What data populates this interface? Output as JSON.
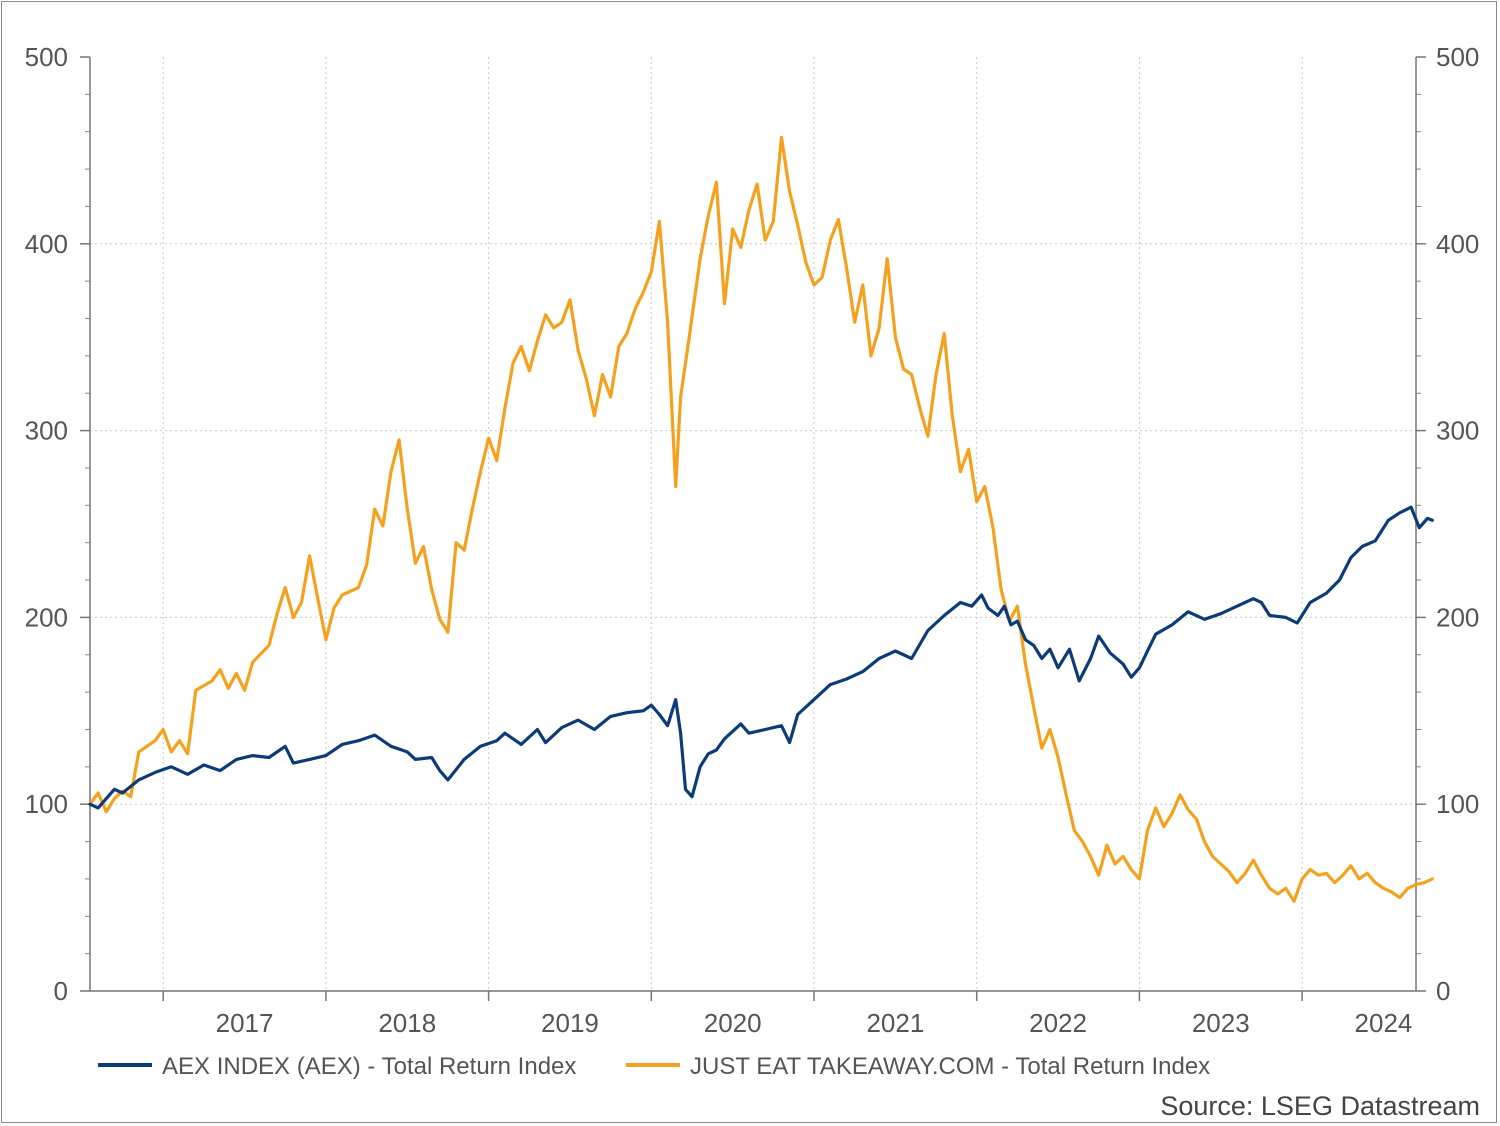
{
  "chart_data": {
    "type": "line",
    "title": "",
    "xlabel": "",
    "ylabel": "",
    "ylim": [
      0,
      500
    ],
    "y_ticks": [
      0,
      100,
      200,
      300,
      400,
      500
    ],
    "y_tick_labels": [
      "0",
      "100",
      "200",
      "300",
      "400",
      "500"
    ],
    "x_range": [
      2016.3,
      2024.45
    ],
    "x_tick_labels": [
      "2017",
      "2018",
      "2019",
      "2020",
      "2021",
      "2022",
      "2023",
      "2024"
    ],
    "grid": true,
    "legend_position": "bottom",
    "source": "Source: LSEG Datastream",
    "series": [
      {
        "name": "AEX INDEX (AEX) - Total Return Index",
        "color": "#0c3c78",
        "points": [
          [
            2016.3,
            100
          ],
          [
            2016.35,
            98
          ],
          [
            2016.4,
            103
          ],
          [
            2016.45,
            108
          ],
          [
            2016.5,
            106
          ],
          [
            2016.6,
            113
          ],
          [
            2016.7,
            117
          ],
          [
            2016.8,
            120
          ],
          [
            2016.9,
            116
          ],
          [
            2017.0,
            121
          ],
          [
            2017.1,
            118
          ],
          [
            2017.2,
            124
          ],
          [
            2017.3,
            126
          ],
          [
            2017.4,
            125
          ],
          [
            2017.5,
            131
          ],
          [
            2017.55,
            122
          ],
          [
            2017.65,
            124
          ],
          [
            2017.75,
            126
          ],
          [
            2017.85,
            132
          ],
          [
            2017.95,
            134
          ],
          [
            2018.05,
            137
          ],
          [
            2018.15,
            131
          ],
          [
            2018.25,
            128
          ],
          [
            2018.3,
            124
          ],
          [
            2018.4,
            125
          ],
          [
            2018.45,
            118
          ],
          [
            2018.5,
            113
          ],
          [
            2018.6,
            124
          ],
          [
            2018.7,
            131
          ],
          [
            2018.8,
            134
          ],
          [
            2018.85,
            138
          ],
          [
            2018.95,
            132
          ],
          [
            2019.05,
            140
          ],
          [
            2019.1,
            133
          ],
          [
            2019.2,
            141
          ],
          [
            2019.3,
            145
          ],
          [
            2019.4,
            140
          ],
          [
            2019.5,
            147
          ],
          [
            2019.6,
            149
          ],
          [
            2019.7,
            150
          ],
          [
            2019.75,
            153
          ],
          [
            2019.8,
            148
          ],
          [
            2019.85,
            142
          ],
          [
            2019.9,
            156
          ],
          [
            2019.93,
            138
          ],
          [
            2019.96,
            108
          ],
          [
            2020.0,
            104
          ],
          [
            2020.05,
            120
          ],
          [
            2020.1,
            127
          ],
          [
            2020.15,
            129
          ],
          [
            2020.2,
            135
          ],
          [
            2020.3,
            143
          ],
          [
            2020.35,
            138
          ],
          [
            2020.45,
            140
          ],
          [
            2020.55,
            142
          ],
          [
            2020.6,
            133
          ],
          [
            2020.65,
            148
          ],
          [
            2020.75,
            156
          ],
          [
            2020.85,
            164
          ],
          [
            2020.95,
            167
          ],
          [
            2021.05,
            171
          ],
          [
            2021.15,
            178
          ],
          [
            2021.25,
            182
          ],
          [
            2021.35,
            178
          ],
          [
            2021.45,
            193
          ],
          [
            2021.55,
            201
          ],
          [
            2021.65,
            208
          ],
          [
            2021.72,
            206
          ],
          [
            2021.78,
            212
          ],
          [
            2021.82,
            205
          ],
          [
            2021.88,
            201
          ],
          [
            2021.92,
            206
          ],
          [
            2021.96,
            196
          ],
          [
            2022.0,
            198
          ],
          [
            2022.05,
            188
          ],
          [
            2022.1,
            185
          ],
          [
            2022.15,
            178
          ],
          [
            2022.2,
            183
          ],
          [
            2022.25,
            173
          ],
          [
            2022.32,
            183
          ],
          [
            2022.38,
            166
          ],
          [
            2022.45,
            178
          ],
          [
            2022.5,
            190
          ],
          [
            2022.57,
            181
          ],
          [
            2022.65,
            175
          ],
          [
            2022.7,
            168
          ],
          [
            2022.75,
            173
          ],
          [
            2022.8,
            182
          ],
          [
            2022.85,
            191
          ],
          [
            2022.95,
            196
          ],
          [
            2023.05,
            203
          ],
          [
            2023.15,
            199
          ],
          [
            2023.25,
            202
          ],
          [
            2023.35,
            206
          ],
          [
            2023.45,
            210
          ],
          [
            2023.5,
            208
          ],
          [
            2023.55,
            201
          ],
          [
            2023.65,
            200
          ],
          [
            2023.72,
            197
          ],
          [
            2023.8,
            208
          ],
          [
            2023.9,
            213
          ],
          [
            2023.98,
            220
          ],
          [
            2024.05,
            232
          ],
          [
            2024.12,
            238
          ],
          [
            2024.2,
            241
          ],
          [
            2024.28,
            252
          ],
          [
            2024.35,
            256
          ],
          [
            2024.42,
            259
          ],
          [
            2024.47,
            248
          ],
          [
            2024.52,
            253
          ],
          [
            2024.55,
            252
          ]
        ]
      },
      {
        "name": "JUST EAT TAKEAWAY.COM - Total Return Index",
        "color": "#f5a11e",
        "points": [
          [
            2016.3,
            100
          ],
          [
            2016.35,
            106
          ],
          [
            2016.4,
            96
          ],
          [
            2016.45,
            103
          ],
          [
            2016.5,
            107
          ],
          [
            2016.55,
            104
          ],
          [
            2016.6,
            128
          ],
          [
            2016.7,
            134
          ],
          [
            2016.75,
            140
          ],
          [
            2016.8,
            128
          ],
          [
            2016.85,
            134
          ],
          [
            2016.9,
            127
          ],
          [
            2016.95,
            161
          ],
          [
            2017.05,
            166
          ],
          [
            2017.1,
            172
          ],
          [
            2017.15,
            162
          ],
          [
            2017.2,
            170
          ],
          [
            2017.25,
            161
          ],
          [
            2017.3,
            176
          ],
          [
            2017.4,
            185
          ],
          [
            2017.45,
            202
          ],
          [
            2017.5,
            216
          ],
          [
            2017.55,
            200
          ],
          [
            2017.6,
            208
          ],
          [
            2017.65,
            233
          ],
          [
            2017.7,
            210
          ],
          [
            2017.75,
            188
          ],
          [
            2017.8,
            205
          ],
          [
            2017.85,
            212
          ],
          [
            2017.95,
            216
          ],
          [
            2018.0,
            228
          ],
          [
            2018.05,
            258
          ],
          [
            2018.1,
            249
          ],
          [
            2018.15,
            278
          ],
          [
            2018.2,
            295
          ],
          [
            2018.25,
            258
          ],
          [
            2018.3,
            229
          ],
          [
            2018.35,
            238
          ],
          [
            2018.4,
            215
          ],
          [
            2018.45,
            199
          ],
          [
            2018.5,
            192
          ],
          [
            2018.55,
            240
          ],
          [
            2018.6,
            236
          ],
          [
            2018.65,
            258
          ],
          [
            2018.7,
            278
          ],
          [
            2018.75,
            296
          ],
          [
            2018.8,
            284
          ],
          [
            2018.85,
            312
          ],
          [
            2018.9,
            336
          ],
          [
            2018.95,
            345
          ],
          [
            2019.0,
            332
          ],
          [
            2019.05,
            348
          ],
          [
            2019.1,
            362
          ],
          [
            2019.15,
            355
          ],
          [
            2019.2,
            358
          ],
          [
            2019.25,
            370
          ],
          [
            2019.3,
            343
          ],
          [
            2019.35,
            328
          ],
          [
            2019.4,
            308
          ],
          [
            2019.45,
            330
          ],
          [
            2019.5,
            318
          ],
          [
            2019.55,
            345
          ],
          [
            2019.6,
            352
          ],
          [
            2019.65,
            365
          ],
          [
            2019.7,
            374
          ],
          [
            2019.75,
            385
          ],
          [
            2019.8,
            412
          ],
          [
            2019.85,
            358
          ],
          [
            2019.9,
            270
          ],
          [
            2019.93,
            318
          ],
          [
            2019.98,
            348
          ],
          [
            2020.05,
            392
          ],
          [
            2020.1,
            415
          ],
          [
            2020.15,
            433
          ],
          [
            2020.2,
            368
          ],
          [
            2020.25,
            408
          ],
          [
            2020.3,
            398
          ],
          [
            2020.35,
            418
          ],
          [
            2020.4,
            432
          ],
          [
            2020.45,
            402
          ],
          [
            2020.5,
            412
          ],
          [
            2020.55,
            457
          ],
          [
            2020.6,
            428
          ],
          [
            2020.65,
            410
          ],
          [
            2020.7,
            390
          ],
          [
            2020.75,
            378
          ],
          [
            2020.8,
            382
          ],
          [
            2020.85,
            402
          ],
          [
            2020.9,
            413
          ],
          [
            2020.95,
            387
          ],
          [
            2021.0,
            358
          ],
          [
            2021.05,
            378
          ],
          [
            2021.1,
            340
          ],
          [
            2021.15,
            355
          ],
          [
            2021.2,
            392
          ],
          [
            2021.25,
            350
          ],
          [
            2021.3,
            333
          ],
          [
            2021.35,
            330
          ],
          [
            2021.4,
            312
          ],
          [
            2021.45,
            297
          ],
          [
            2021.5,
            330
          ],
          [
            2021.55,
            352
          ],
          [
            2021.6,
            308
          ],
          [
            2021.65,
            278
          ],
          [
            2021.7,
            290
          ],
          [
            2021.75,
            262
          ],
          [
            2021.8,
            270
          ],
          [
            2021.85,
            248
          ],
          [
            2021.9,
            215
          ],
          [
            2021.95,
            198
          ],
          [
            2022.0,
            206
          ],
          [
            2022.05,
            175
          ],
          [
            2022.1,
            152
          ],
          [
            2022.15,
            130
          ],
          [
            2022.2,
            140
          ],
          [
            2022.25,
            125
          ],
          [
            2022.3,
            105
          ],
          [
            2022.35,
            86
          ],
          [
            2022.4,
            80
          ],
          [
            2022.45,
            72
          ],
          [
            2022.5,
            62
          ],
          [
            2022.55,
            78
          ],
          [
            2022.6,
            68
          ],
          [
            2022.65,
            72
          ],
          [
            2022.7,
            65
          ],
          [
            2022.75,
            60
          ],
          [
            2022.8,
            86
          ],
          [
            2022.85,
            98
          ],
          [
            2022.9,
            88
          ],
          [
            2022.95,
            95
          ],
          [
            2023.0,
            105
          ],
          [
            2023.05,
            97
          ],
          [
            2023.1,
            92
          ],
          [
            2023.15,
            80
          ],
          [
            2023.2,
            72
          ],
          [
            2023.25,
            68
          ],
          [
            2023.3,
            64
          ],
          [
            2023.35,
            58
          ],
          [
            2023.4,
            63
          ],
          [
            2023.45,
            70
          ],
          [
            2023.5,
            62
          ],
          [
            2023.55,
            55
          ],
          [
            2023.6,
            52
          ],
          [
            2023.65,
            55
          ],
          [
            2023.7,
            48
          ],
          [
            2023.75,
            60
          ],
          [
            2023.8,
            65
          ],
          [
            2023.85,
            62
          ],
          [
            2023.9,
            63
          ],
          [
            2023.95,
            58
          ],
          [
            2024.0,
            62
          ],
          [
            2024.05,
            67
          ],
          [
            2024.1,
            60
          ],
          [
            2024.15,
            63
          ],
          [
            2024.2,
            58
          ],
          [
            2024.25,
            55
          ],
          [
            2024.3,
            53
          ],
          [
            2024.35,
            50
          ],
          [
            2024.4,
            55
          ],
          [
            2024.45,
            57
          ],
          [
            2024.5,
            58
          ],
          [
            2024.55,
            60
          ]
        ]
      }
    ]
  }
}
